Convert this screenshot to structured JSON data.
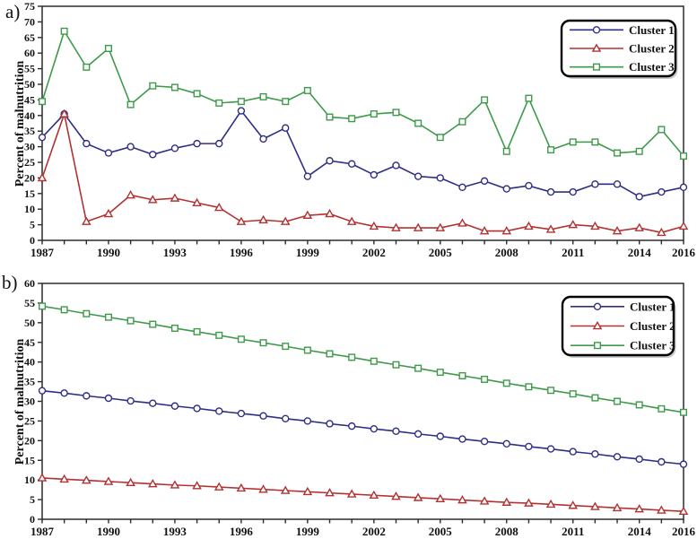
{
  "figure": {
    "background": "#ffffff",
    "axis_color": "#2b2b2b",
    "text_color": "#111111"
  },
  "chart_data": [
    {
      "type": "line",
      "panel_label": "a)",
      "title": "",
      "xlabel": "",
      "ylabel": "Percent of malnutrition",
      "x": [
        1987,
        1988,
        1989,
        1990,
        1991,
        1992,
        1993,
        1994,
        1995,
        1996,
        1997,
        1998,
        1999,
        2000,
        2001,
        2002,
        2003,
        2004,
        2005,
        2006,
        2007,
        2008,
        2009,
        2010,
        2011,
        2012,
        2013,
        2014,
        2015,
        2016
      ],
      "xtick_labels": [
        1987,
        1990,
        1993,
        1996,
        1999,
        2002,
        2005,
        2008,
        2011,
        2014,
        2016
      ],
      "ylim": [
        0,
        75
      ],
      "ytick_step": 5,
      "grid": false,
      "legend_position": "top-right",
      "series": [
        {
          "name": "Cluster 1",
          "color": "#2e2e85",
          "marker": "circle",
          "values": [
            33,
            40.5,
            31,
            28,
            30,
            27.5,
            29.5,
            31,
            31,
            41.5,
            32.5,
            36,
            20.5,
            25.5,
            24.5,
            21,
            24,
            20.5,
            20,
            17,
            19,
            16.5,
            17.5,
            15.5,
            15.5,
            18,
            18,
            14,
            15.5,
            17
          ]
        },
        {
          "name": "Cluster 2",
          "color": "#b23232",
          "marker": "triangle",
          "values": [
            20,
            40.5,
            6,
            8.5,
            14.5,
            13,
            13.5,
            12,
            10.5,
            6,
            6.5,
            6,
            8,
            8.5,
            6,
            4.5,
            4,
            4,
            4,
            5.5,
            3,
            3,
            4.5,
            3.5,
            5,
            4.5,
            3,
            4,
            2.5,
            4.5
          ]
        },
        {
          "name": "Cluster 3",
          "color": "#3e9a4a",
          "marker": "square",
          "values": [
            44.5,
            67,
            55.5,
            61.5,
            43.5,
            49.5,
            49,
            47,
            44,
            44.5,
            46,
            44.5,
            48,
            39.5,
            39,
            40.5,
            41,
            37.5,
            33,
            38,
            45,
            28.5,
            45.5,
            29,
            31.5,
            31.5,
            28,
            28.5,
            35.5,
            27
          ]
        }
      ]
    },
    {
      "type": "line",
      "panel_label": "b)",
      "title": "",
      "xlabel": "",
      "ylabel": "Percent of malnutrition",
      "x": [
        1987,
        1988,
        1989,
        1990,
        1991,
        1992,
        1993,
        1994,
        1995,
        1996,
        1997,
        1998,
        1999,
        2000,
        2001,
        2002,
        2003,
        2004,
        2005,
        2006,
        2007,
        2008,
        2009,
        2010,
        2011,
        2012,
        2013,
        2014,
        2015,
        2016
      ],
      "xtick_labels": [
        1987,
        1990,
        1993,
        1996,
        1999,
        2002,
        2005,
        2008,
        2011,
        2014,
        2016
      ],
      "ylim": [
        0,
        60
      ],
      "ytick_step": 5,
      "grid": false,
      "legend_position": "top-right",
      "series": [
        {
          "name": "Cluster 1",
          "color": "#2e2e85",
          "marker": "circle",
          "values": [
            32.7,
            32.1,
            31.4,
            30.8,
            30.1,
            29.5,
            28.8,
            28.2,
            27.5,
            26.9,
            26.3,
            25.6,
            25.0,
            24.3,
            23.7,
            23.0,
            22.4,
            21.7,
            21.1,
            20.4,
            19.8,
            19.2,
            18.5,
            17.9,
            17.2,
            16.6,
            15.9,
            15.3,
            14.6,
            14.0
          ]
        },
        {
          "name": "Cluster 2",
          "color": "#b23232",
          "marker": "triangle",
          "values": [
            10.5,
            10.2,
            9.9,
            9.6,
            9.3,
            9.0,
            8.7,
            8.5,
            8.2,
            7.9,
            7.6,
            7.3,
            7.0,
            6.7,
            6.4,
            6.1,
            5.8,
            5.5,
            5.2,
            4.9,
            4.6,
            4.3,
            4.1,
            3.8,
            3.5,
            3.2,
            2.9,
            2.6,
            2.3,
            2.0
          ]
        },
        {
          "name": "Cluster 3",
          "color": "#3e9a4a",
          "marker": "square",
          "values": [
            54.2,
            53.3,
            52.3,
            51.4,
            50.5,
            49.6,
            48.6,
            47.7,
            46.8,
            45.8,
            44.9,
            44.0,
            43.0,
            42.1,
            41.2,
            40.2,
            39.3,
            38.4,
            37.4,
            36.5,
            35.6,
            34.6,
            33.7,
            32.8,
            31.9,
            30.9,
            30.0,
            29.1,
            28.1,
            27.2
          ]
        }
      ]
    }
  ]
}
